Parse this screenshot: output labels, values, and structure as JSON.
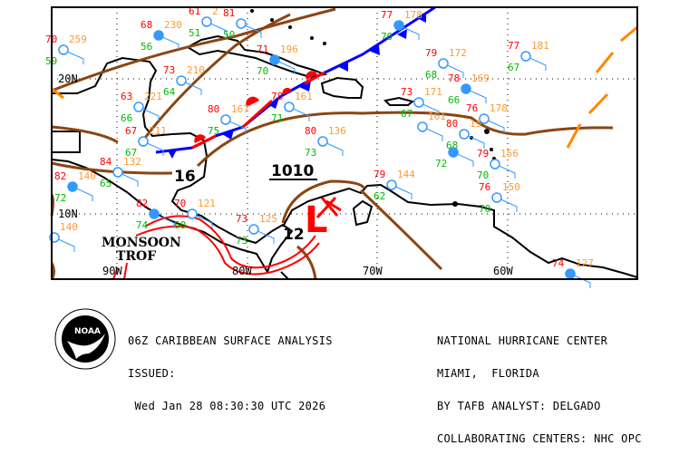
{
  "map": {
    "grid_labels": {
      "lat_20": "20N",
      "lat_10": "10N",
      "lon_90": "90W",
      "lon_80": "80W",
      "lon_70": "70W",
      "lon_60": "60W"
    },
    "isobar_label": "1010",
    "pressure_labels": [
      "16",
      "12"
    ],
    "low_symbol": "L",
    "monsoon_label": [
      "MONSOON",
      "TROF"
    ],
    "colors": {
      "temp": "#ff0000",
      "dew": "#00bb00",
      "pressure": "#ff9933",
      "station": "#3399ff",
      "cold_front": "#0000ff",
      "warm_front": "#ff0000",
      "trough": "#8b4513",
      "tropical_wave": "#ff8800"
    },
    "stations": [
      {
        "temp": "70",
        "pressure": "259",
        "dew": "59"
      },
      {
        "temp": "68",
        "pressure": "230",
        "dew": "56"
      },
      {
        "temp": "61",
        "pressure": "2",
        "dew": "51"
      },
      {
        "temp": "81",
        "pressure": "",
        "dew": "50"
      },
      {
        "temp": "73",
        "pressure": "210",
        "dew": "64"
      },
      {
        "temp": "71",
        "pressure": "196",
        "dew": "70"
      },
      {
        "temp": "63",
        "pressure": "221",
        "dew": "66"
      },
      {
        "temp": "67",
        "pressure": "211",
        "dew": "67"
      },
      {
        "temp": "84",
        "pressure": "132",
        "dew": "65"
      },
      {
        "temp": "82",
        "pressure": "140",
        "dew": "72"
      },
      {
        "temp": "80",
        "pressure": "167",
        "dew": "75"
      },
      {
        "temp": "78",
        "pressure": "161",
        "dew": "71"
      },
      {
        "temp": "80",
        "pressure": "136",
        "dew": "73"
      },
      {
        "temp": "82",
        "pressure": "",
        "dew": "74"
      },
      {
        "temp": "70",
        "pressure": "121",
        "dew": "60"
      },
      {
        "temp": "73",
        "pressure": "125",
        "dew": "73"
      },
      {
        "temp": "",
        "pressure": "140",
        "dew": ""
      },
      {
        "temp": "77",
        "pressure": "178",
        "dew": "70"
      },
      {
        "temp": "79",
        "pressure": "172",
        "dew": "68"
      },
      {
        "temp": "77",
        "pressure": "181",
        "dew": "67"
      },
      {
        "temp": "73",
        "pressure": "171",
        "dew": "67"
      },
      {
        "temp": "78",
        "pressure": "169",
        "dew": "66"
      },
      {
        "temp": "",
        "pressure": "161",
        "dew": ""
      },
      {
        "temp": "76",
        "pressure": "178",
        "dew": ""
      },
      {
        "temp": "80",
        "pressure": "15",
        "dew": "68"
      },
      {
        "temp": "",
        "pressure": "",
        "dew": "72"
      },
      {
        "temp": "79",
        "pressure": "156",
        "dew": "70"
      },
      {
        "temp": "79",
        "pressure": "144",
        "dew": "62"
      },
      {
        "temp": "76",
        "pressure": "150",
        "dew": "70"
      },
      {
        "temp": "74",
        "pressure": "127",
        "dew": ""
      }
    ]
  },
  "footer": {
    "title": "06Z CARIBBEAN SURFACE ANALYSIS",
    "issued_label": "ISSUED:",
    "issued_time": " Wed Jan 28 08:30:30 UTC 2026",
    "center": "NATIONAL HURRICANE CENTER",
    "location": "MIAMI,  FLORIDA",
    "analyst": "BY TAFB ANALYST: DELGADO",
    "collaborating": "COLLABORATING CENTERS: NHC OPC",
    "logo_text": "NOAA"
  }
}
